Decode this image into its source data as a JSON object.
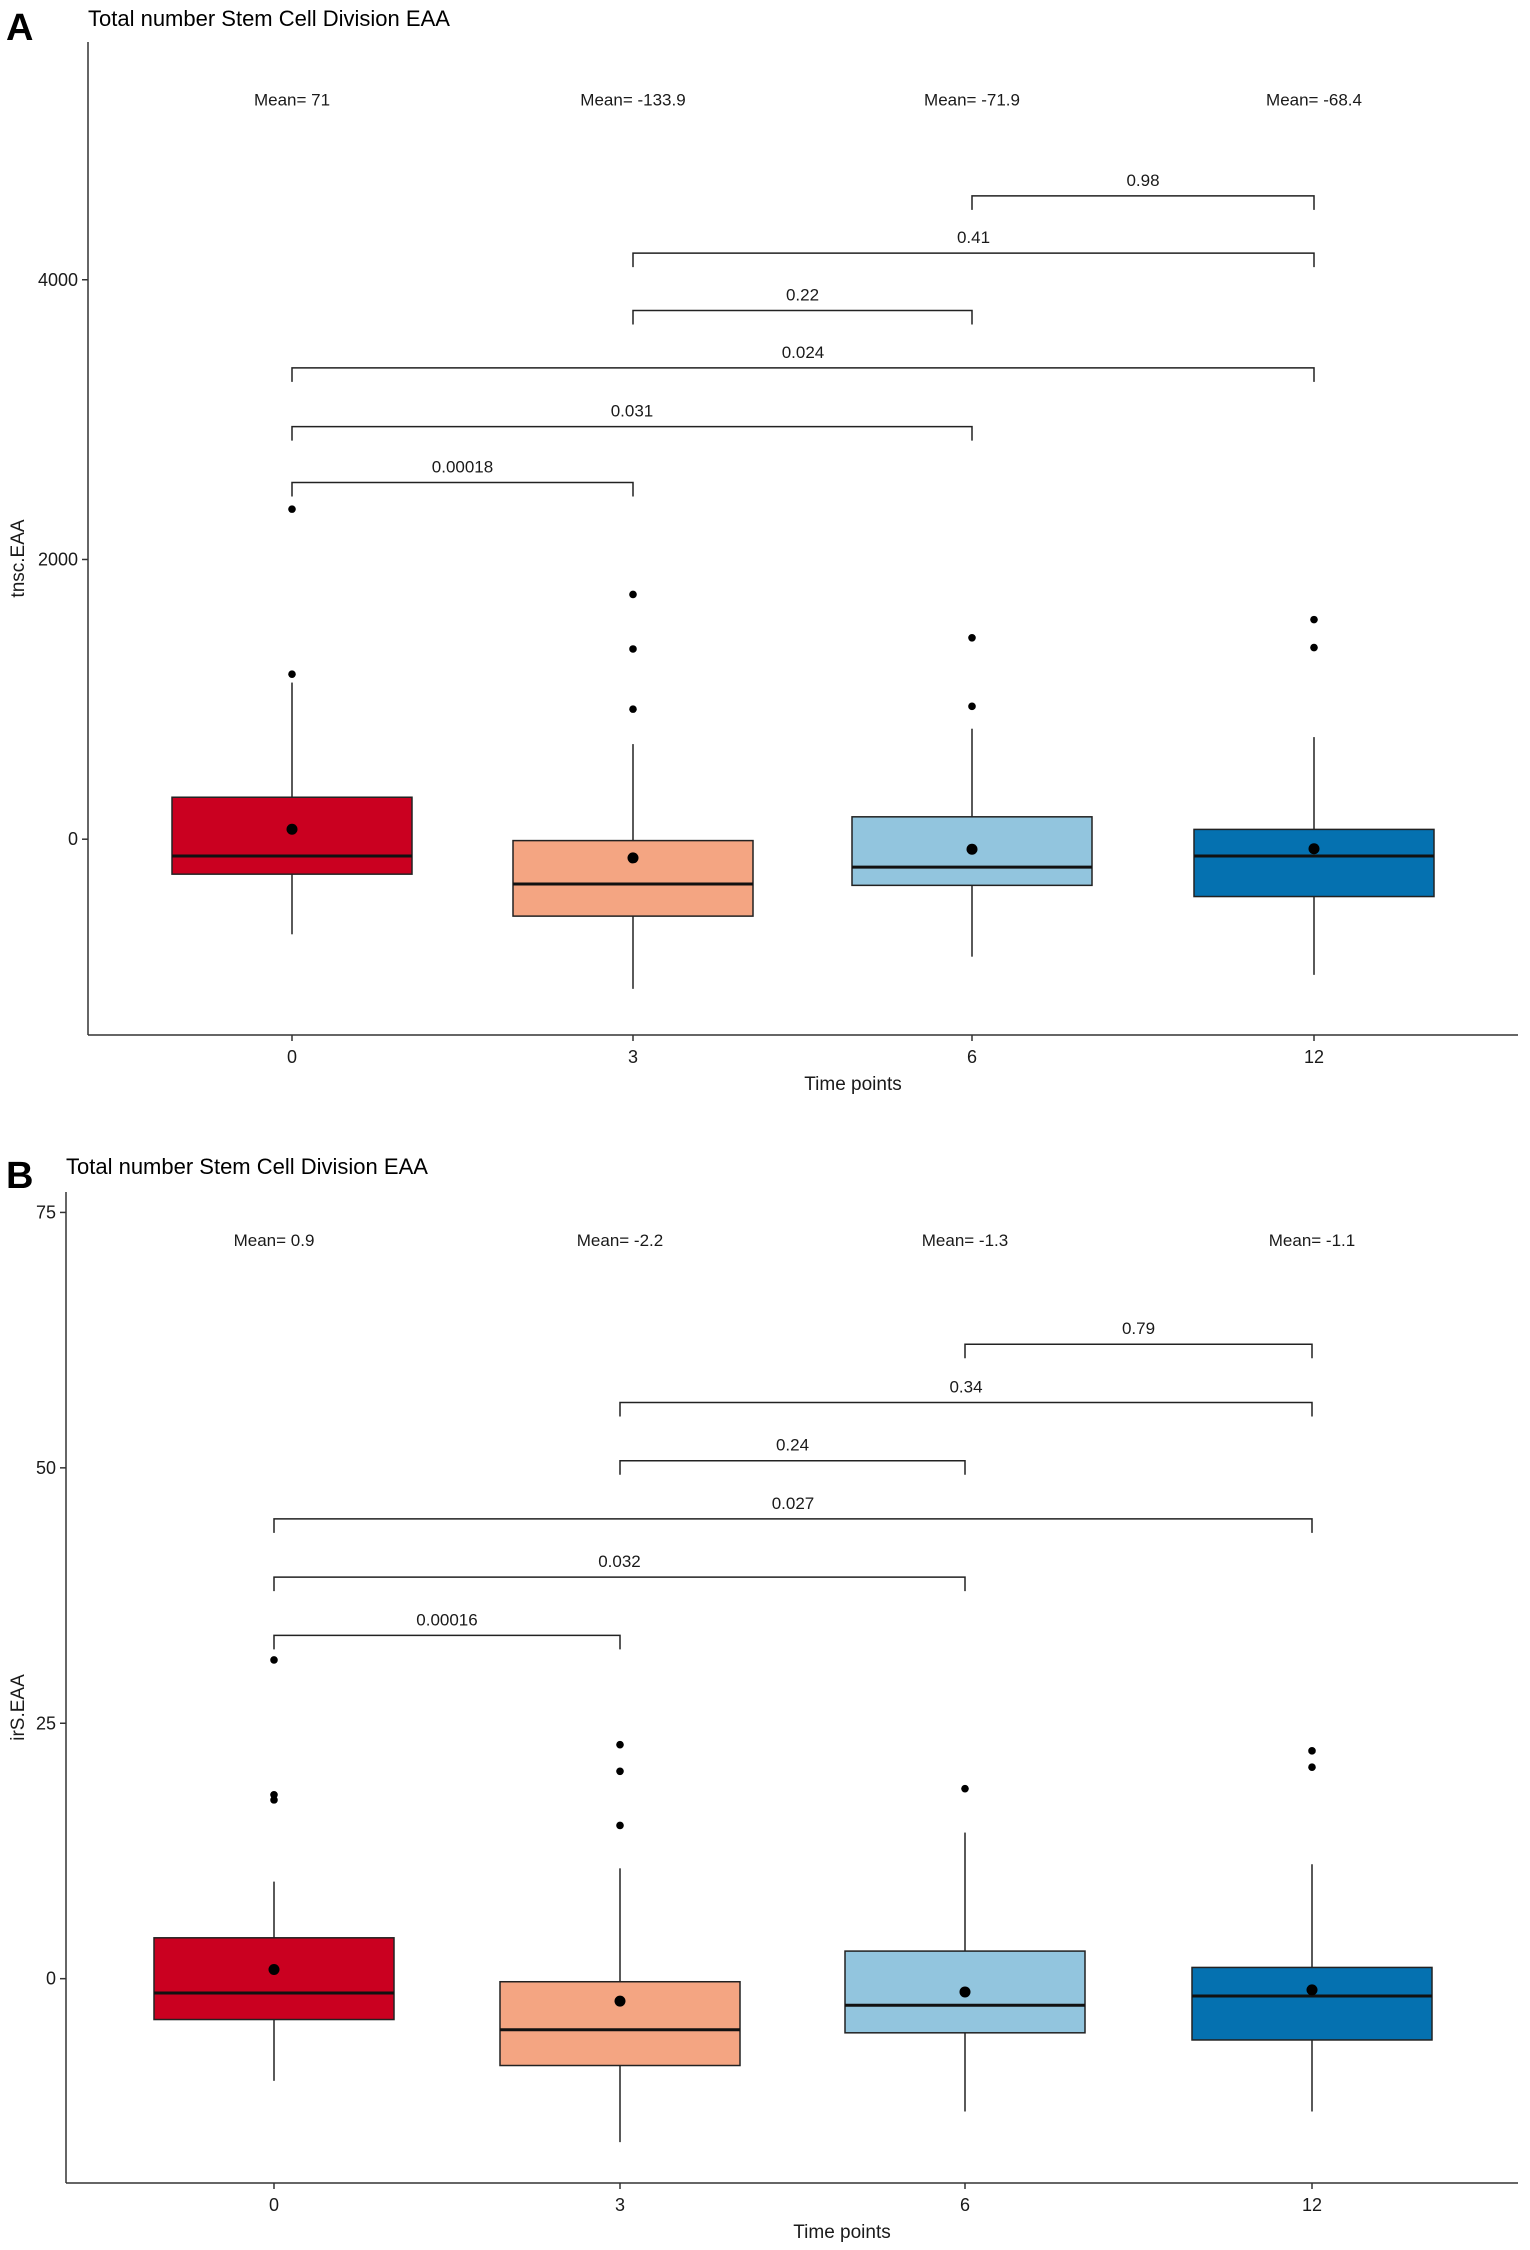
{
  "chart_data": [
    {
      "type": "box",
      "panel_label": "A",
      "title": "Total number Stem Cell Division EAA",
      "xlabel": "Time points",
      "ylabel": "tnsc.EAA",
      "categories": [
        "0",
        "3",
        "6",
        "12"
      ],
      "y_ticks": [
        0,
        2000,
        4000
      ],
      "y_tick_labels": [
        "0",
        "2000",
        "4000"
      ],
      "ylim": [
        -1400,
        5700
      ],
      "grid": false,
      "colors": [
        "#ca0020",
        "#f4a582",
        "#92c5de",
        "#0571b0"
      ],
      "boxes": [
        {
          "category": "0",
          "q1": -250,
          "median": -120,
          "q3": 300,
          "whisker_low": -680,
          "whisker_high": 1120,
          "mean": 71,
          "outliers": [
            1180,
            2360
          ]
        },
        {
          "category": "3",
          "q1": -550,
          "median": -320,
          "q3": -10,
          "whisker_low": -1070,
          "whisker_high": 680,
          "mean": -133.9,
          "outliers": [
            930,
            1360,
            1750
          ]
        },
        {
          "category": "6",
          "q1": -330,
          "median": -200,
          "q3": 160,
          "whisker_low": -840,
          "whisker_high": 790,
          "mean": -71.9,
          "outliers": [
            950,
            1440
          ]
        },
        {
          "category": "12",
          "q1": -410,
          "median": -120,
          "q3": 70,
          "whisker_low": -970,
          "whisker_high": 730,
          "mean": -68.4,
          "outliers": [
            1370,
            1570
          ]
        }
      ],
      "mean_labels": [
        "Mean= 71",
        "Mean= -133.9",
        "Mean= -71.9",
        "Mean= -68.4"
      ],
      "mean_label_y": 5290,
      "comparisons": [
        {
          "from": "0",
          "to": "3",
          "label": "0.00018",
          "y": 2550
        },
        {
          "from": "0",
          "to": "6",
          "label": "0.031",
          "y": 2950
        },
        {
          "from": "0",
          "to": "12",
          "label": "0.024",
          "y": 3370
        },
        {
          "from": "3",
          "to": "6",
          "label": "0.22",
          "y": 3780
        },
        {
          "from": "3",
          "to": "12",
          "label": "0.41",
          "y": 4190
        },
        {
          "from": "6",
          "to": "12",
          "label": "0.98",
          "y": 4600
        }
      ]
    },
    {
      "type": "box",
      "panel_label": "B",
      "title": "Total number Stem Cell Division EAA",
      "xlabel": "Time points",
      "ylabel": "irS.EAA",
      "categories": [
        "0",
        "3",
        "6",
        "12"
      ],
      "y_ticks": [
        0,
        25,
        50,
        75
      ],
      "y_tick_labels": [
        "0",
        "25",
        "50",
        "75"
      ],
      "ylim": [
        -20,
        77
      ],
      "grid": false,
      "colors": [
        "#ca0020",
        "#f4a582",
        "#92c5de",
        "#0571b0"
      ],
      "boxes": [
        {
          "category": "0",
          "q1": -4,
          "median": -1.4,
          "q3": 4,
          "whisker_low": -10,
          "whisker_high": 9.5,
          "mean": 0.9,
          "outliers": [
            17.5,
            18,
            31.2
          ]
        },
        {
          "category": "3",
          "q1": -8.5,
          "median": -5,
          "q3": -0.3,
          "whisker_low": -16,
          "whisker_high": 10.8,
          "mean": -2.2,
          "outliers": [
            15,
            20.3,
            22.9
          ]
        },
        {
          "category": "6",
          "q1": -5.3,
          "median": -2.6,
          "q3": 2.7,
          "whisker_low": -13,
          "whisker_high": 14.3,
          "mean": -1.3,
          "outliers": [
            18.6
          ]
        },
        {
          "category": "12",
          "q1": -6,
          "median": -1.7,
          "q3": 1.1,
          "whisker_low": -13,
          "whisker_high": 11.2,
          "mean": -1.1,
          "outliers": [
            20.7,
            22.3
          ]
        }
      ],
      "mean_labels": [
        "Mean= 0.9",
        "Mean= -2.2",
        "Mean= -1.3",
        "Mean= -1.1"
      ],
      "mean_label_y": 72.3,
      "comparisons": [
        {
          "from": "0",
          "to": "3",
          "label": "0.00016",
          "y": 33.6
        },
        {
          "from": "0",
          "to": "6",
          "label": "0.032",
          "y": 39.3
        },
        {
          "from": "0",
          "to": "12",
          "label": "0.027",
          "y": 45
        },
        {
          "from": "3",
          "to": "6",
          "label": "0.24",
          "y": 50.7
        },
        {
          "from": "3",
          "to": "12",
          "label": "0.34",
          "y": 56.4
        },
        {
          "from": "6",
          "to": "12",
          "label": "0.79",
          "y": 62.1
        }
      ]
    }
  ]
}
